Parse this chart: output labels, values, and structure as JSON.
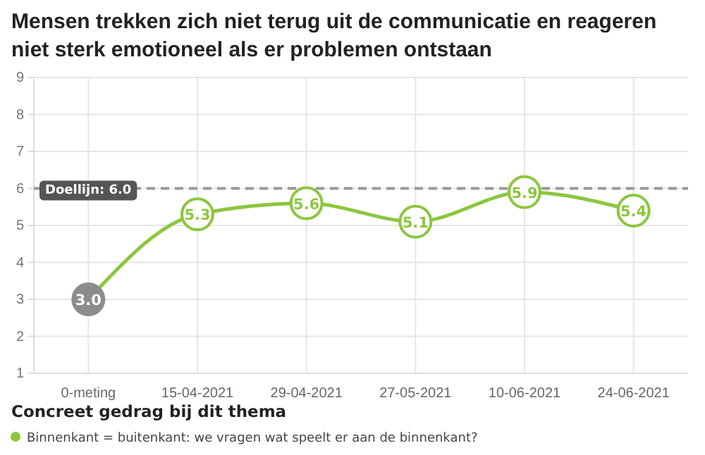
{
  "chart_data": {
    "type": "line",
    "title": "Mensen trekken zich niet terug uit de communicatie en reageren niet sterk emotioneel als er problemen ontstaan",
    "categories": [
      "0-meting",
      "15-04-2021",
      "29-04-2021",
      "27-05-2021",
      "10-06-2021",
      "24-06-2021"
    ],
    "series": [
      {
        "name": "Binnenkant = buitenkant: we vragen wat speelt er aan de binnenkant?",
        "color": "#8cc63f",
        "colors": [
          "#8c8c8c",
          "#8cc63f",
          "#8cc63f",
          "#8cc63f",
          "#8cc63f",
          "#8cc63f"
        ],
        "values": [
          3.0,
          5.3,
          5.6,
          5.1,
          5.9,
          5.4
        ],
        "value_labels": [
          "3.0",
          "5.3",
          "5.6",
          "5.1",
          "5.9",
          "5.4"
        ]
      }
    ],
    "ylim": [
      1,
      9
    ],
    "yticks": [
      1,
      2,
      3,
      4,
      5,
      6,
      7,
      8,
      9
    ],
    "grid": true,
    "ref_lines": [
      {
        "axis": "y",
        "value": 6.0,
        "label": "Doellijn: 6.0",
        "color": "#999999",
        "line_style": "dashed"
      }
    ],
    "legend": "bottom",
    "legend_title": "Concreet gedrag bij dit thema",
    "marker": "circle",
    "line_style": "solid"
  }
}
